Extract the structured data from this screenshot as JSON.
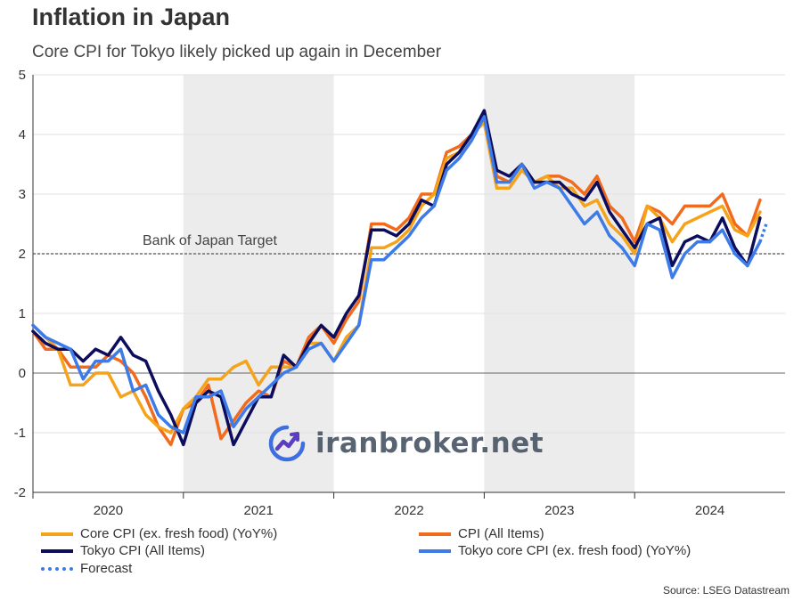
{
  "title": "Inflation in Japan",
  "subtitle": "Core CPI for Tokyo likely picked up again in December",
  "source": "Source: LSEG Datastream",
  "watermark": "iranbroker.net",
  "target_label": "Bank of Japan Target",
  "legend": [
    {
      "label": "Core CPI (ex. fresh food) (YoY%)",
      "color": "#f5a31a",
      "style": "solid"
    },
    {
      "label": "CPI (All Items)",
      "color": "#f26b1d",
      "style": "solid"
    },
    {
      "label": "Tokyo CPI (All Items)",
      "color": "#0d0d5e",
      "style": "solid"
    },
    {
      "label": "Tokyo core CPI (ex. fresh food) (YoY%)",
      "color": "#3d7be8",
      "style": "solid"
    },
    {
      "label": "Forecast",
      "color": "#3d7be8",
      "style": "dotted"
    }
  ],
  "chart_data": {
    "type": "line",
    "title": "Inflation in Japan",
    "subtitle": "Core CPI for Tokyo likely picked up again in December",
    "x_start": "2020-01",
    "year_labels": [
      "2020",
      "2021",
      "2022",
      "2023",
      "2024"
    ],
    "shaded_years": [
      "2021",
      "2023"
    ],
    "ylim": [
      -2,
      5
    ],
    "yticks": [
      "5",
      "4",
      "3",
      "2",
      "1",
      "0",
      "-1",
      "-2"
    ],
    "reference_line": {
      "value": 2,
      "label": "Bank of Japan Target"
    },
    "grid": "horizontal",
    "legend_position": "bottom",
    "series": [
      {
        "name": "Core CPI (ex. fresh food) (YoY%)",
        "color": "#f5a31a",
        "values": [
          0.8,
          0.6,
          0.4,
          -0.2,
          -0.2,
          0.0,
          0.0,
          -0.4,
          -0.3,
          -0.7,
          -0.9,
          -1.0,
          -0.6,
          -0.4,
          -0.1,
          -0.1,
          0.1,
          0.2,
          -0.2,
          0.1,
          0.1,
          0.1,
          0.5,
          0.5,
          0.2,
          0.6,
          0.8,
          2.1,
          2.1,
          2.2,
          2.4,
          2.8,
          3.0,
          3.6,
          3.7,
          4.0,
          4.2,
          3.1,
          3.1,
          3.4,
          3.2,
          3.3,
          3.1,
          3.1,
          2.8,
          2.9,
          2.5,
          2.3,
          2.0,
          2.8,
          2.6,
          2.2,
          2.5,
          2.6,
          2.7,
          2.8,
          2.4,
          2.3,
          2.7
        ]
      },
      {
        "name": "CPI (All Items)",
        "color": "#f26b1d",
        "values": [
          0.7,
          0.4,
          0.4,
          0.1,
          0.1,
          0.1,
          0.3,
          0.2,
          0.0,
          -0.4,
          -0.9,
          -1.2,
          -0.6,
          -0.5,
          -0.2,
          -1.1,
          -0.8,
          -0.5,
          -0.3,
          -0.4,
          0.2,
          0.1,
          0.6,
          0.8,
          0.5,
          0.9,
          1.2,
          2.5,
          2.5,
          2.4,
          2.6,
          3.0,
          3.0,
          3.7,
          3.8,
          4.0,
          4.3,
          3.3,
          3.2,
          3.5,
          3.2,
          3.3,
          3.3,
          3.2,
          3.0,
          3.3,
          2.8,
          2.6,
          2.2,
          2.8,
          2.7,
          2.5,
          2.8,
          2.8,
          2.8,
          3.0,
          2.5,
          2.3,
          2.9
        ]
      },
      {
        "name": "Tokyo CPI (All Items)",
        "color": "#0d0d5e",
        "values": [
          0.7,
          0.5,
          0.4,
          0.4,
          0.2,
          0.4,
          0.3,
          0.6,
          0.3,
          0.2,
          -0.3,
          -0.7,
          -1.2,
          -0.5,
          -0.3,
          -0.4,
          -1.2,
          -0.8,
          -0.4,
          -0.4,
          0.3,
          0.1,
          0.5,
          0.8,
          0.6,
          1.0,
          1.3,
          2.4,
          2.4,
          2.3,
          2.5,
          2.9,
          2.8,
          3.5,
          3.7,
          4.0,
          4.4,
          3.4,
          3.3,
          3.5,
          3.2,
          3.2,
          3.2,
          3.0,
          2.9,
          3.2,
          2.7,
          2.4,
          2.1,
          2.5,
          2.6,
          1.8,
          2.2,
          2.3,
          2.2,
          2.6,
          2.1,
          1.8,
          2.6
        ]
      },
      {
        "name": "Tokyo core CPI (ex. fresh food) (YoY%)",
        "color": "#3d7be8",
        "values": [
          0.8,
          0.6,
          0.5,
          0.4,
          -0.1,
          0.2,
          0.2,
          0.4,
          -0.3,
          -0.2,
          -0.7,
          -0.9,
          -1.0,
          -0.4,
          -0.4,
          -0.3,
          -0.9,
          -0.6,
          -0.4,
          -0.2,
          0.0,
          0.1,
          0.4,
          0.5,
          0.2,
          0.5,
          0.8,
          1.9,
          1.9,
          2.1,
          2.3,
          2.6,
          2.8,
          3.4,
          3.6,
          3.9,
          4.3,
          3.2,
          3.2,
          3.5,
          3.1,
          3.2,
          3.1,
          2.8,
          2.5,
          2.7,
          2.3,
          2.1,
          1.8,
          2.5,
          2.4,
          1.6,
          2.0,
          2.2,
          2.2,
          2.4,
          2.0,
          1.8,
          2.2
        ]
      },
      {
        "name": "Forecast",
        "color": "#3d7be8",
        "style": "dotted",
        "values": [
          2.2,
          2.5
        ]
      }
    ]
  }
}
